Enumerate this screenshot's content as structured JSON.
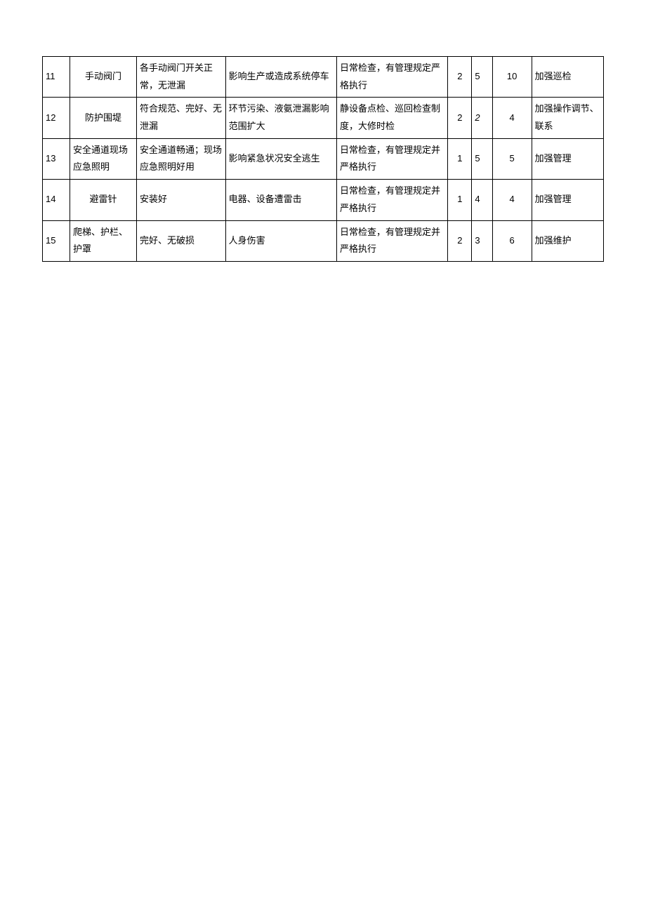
{
  "table": {
    "rows": [
      {
        "num": "11",
        "item": "手动阀门",
        "item_align": "center",
        "standard": "各手动阀门开关正常，无泄漏",
        "impact": "影响生产或造成系统停车",
        "check": "日常检查，有管理规定严格执行",
        "s1": "2",
        "s2": "5",
        "s2_italic": false,
        "s3": "10",
        "measure": "加强巡检"
      },
      {
        "num": "12",
        "item": "防护围堤",
        "item_align": "center",
        "standard": "符合规范、完好、无泄漏",
        "impact": "环节污染、液氨泄漏影响范围扩大",
        "check": "静设备点检、巡回检查制度，大修时检",
        "s1": "2",
        "s2": "2",
        "s2_italic": true,
        "s3": "4",
        "measure": "加强操作调节、联系"
      },
      {
        "num": "13",
        "item": "安全通道现场应急照明",
        "item_align": "left",
        "standard": "安全通道畅通；现场应急照明好用",
        "impact": "影响紧急状况安全逃生",
        "check": "日常检查，有管理规定并严格执行",
        "s1": "1",
        "s2": "5",
        "s2_italic": false,
        "s3": "5",
        "measure": "加强管理"
      },
      {
        "num": "14",
        "item": "避雷针",
        "item_align": "center",
        "standard": "安装好",
        "impact": "电器、设备遭雷击",
        "check": "日常检查，有管理规定并严格执行",
        "s1": "1",
        "s2": "4",
        "s2_italic": false,
        "s3": "4",
        "measure": "加强管理"
      },
      {
        "num": "15",
        "item": "爬梯、护栏、护罩",
        "item_align": "left",
        "standard": "完好、无破损",
        "impact": "人身伤害",
        "check": "日常检查，有管理规定并严格执行",
        "s1": "2",
        "s2": "3",
        "s2_italic": false,
        "s3": "6",
        "measure": "加强维护"
      }
    ]
  }
}
